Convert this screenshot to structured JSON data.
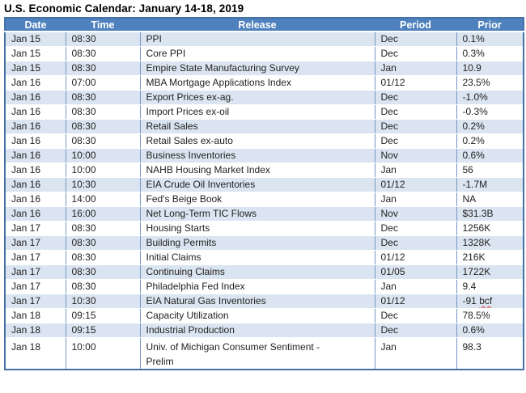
{
  "colors": {
    "header_bg": "#4e81bd",
    "header_text": "#ffffff",
    "band_row_bg": "#dbe5f1",
    "grid_line": "#7496c4",
    "outer_border": "#4472a4",
    "body_text": "#1f1f1f",
    "spellcheck_red": "#e02b20"
  },
  "chart_data": {
    "type": "table",
    "title": "U.S. Economic Calendar: January 14-18, 2019",
    "columns": [
      {
        "key": "date",
        "label": "Date"
      },
      {
        "key": "time",
        "label": "Time"
      },
      {
        "key": "release",
        "label": "Release"
      },
      {
        "key": "period",
        "label": "Period"
      },
      {
        "key": "prior",
        "label": "Prior"
      }
    ],
    "rows": [
      {
        "date": "Jan 15",
        "time": "08:30",
        "release": "PPI",
        "period": "Dec",
        "prior": "0.1%"
      },
      {
        "date": "Jan 15",
        "time": "08:30",
        "release": "Core PPI",
        "period": "Dec",
        "prior": "0.3%"
      },
      {
        "date": "Jan 15",
        "time": "08:30",
        "release": "Empire State Manufacturing Survey",
        "period": "Jan",
        "prior": "10.9"
      },
      {
        "date": "Jan 16",
        "time": "07:00",
        "release": "MBA Mortgage Applications Index",
        "period": "01/12",
        "prior": "23.5%"
      },
      {
        "date": "Jan 16",
        "time": "08:30",
        "release": "Export Prices ex-ag.",
        "period": "Dec",
        "prior": "-1.0%"
      },
      {
        "date": "Jan 16",
        "time": "08:30",
        "release": "Import Prices ex-oil",
        "period": "Dec",
        "prior": "-0.3%"
      },
      {
        "date": "Jan 16",
        "time": "08:30",
        "release": "Retail Sales",
        "period": "Dec",
        "prior": "0.2%"
      },
      {
        "date": "Jan 16",
        "time": "08:30",
        "release": "Retail Sales ex-auto",
        "period": "Dec",
        "prior": "0.2%"
      },
      {
        "date": "Jan 16",
        "time": "10:00",
        "release": "Business Inventories",
        "period": "Nov",
        "prior": "0.6%"
      },
      {
        "date": "Jan 16",
        "time": "10:00",
        "release": "NAHB Housing Market Index",
        "period": "Jan",
        "prior": "56"
      },
      {
        "date": "Jan 16",
        "time": "10:30",
        "release": "EIA Crude Oil Inventories",
        "period": "01/12",
        "prior": "-1.7M"
      },
      {
        "date": "Jan 16",
        "time": "14:00",
        "release": "Fed's Beige Book",
        "period": "Jan",
        "prior": "NA"
      },
      {
        "date": "Jan 16",
        "time": "16:00",
        "release": "Net Long-Term TIC Flows",
        "period": "Nov",
        "prior": "$31.3B"
      },
      {
        "date": "Jan 17",
        "time": "08:30",
        "release": "Housing Starts",
        "period": "Dec",
        "prior": "1256K"
      },
      {
        "date": "Jan 17",
        "time": "08:30",
        "release": "Building Permits",
        "period": "Dec",
        "prior": "1328K"
      },
      {
        "date": "Jan 17",
        "time": "08:30",
        "release": "Initial Claims",
        "period": "01/12",
        "prior": "216K"
      },
      {
        "date": "Jan 17",
        "time": "08:30",
        "release": "Continuing Claims",
        "period": "01/05",
        "prior": "1722K"
      },
      {
        "date": "Jan 17",
        "time": "08:30",
        "release": "Philadelphia Fed Index",
        "period": "Jan",
        "prior": "9.4"
      },
      {
        "date": "Jan 17",
        "time": "10:30",
        "release": "EIA Natural Gas Inventories",
        "period": "01/12",
        "prior": "-91 bcf",
        "prior_spellcheck": "bcf"
      },
      {
        "date": "Jan 18",
        "time": "09:15",
        "release": "Capacity Utilization",
        "period": "Dec",
        "prior": "78.5%"
      },
      {
        "date": "Jan 18",
        "time": "09:15",
        "release": "Industrial Production",
        "period": "Dec",
        "prior": "0.6%"
      },
      {
        "date": "Jan 18",
        "time": "10:00",
        "release": "Univ. of Michigan Consumer Sentiment -",
        "release_line2": "Prelim",
        "period": "Jan",
        "prior": "98.3"
      }
    ]
  }
}
